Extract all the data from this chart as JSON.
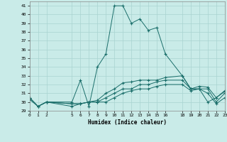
{
  "xlabel": "Humidex (Indice chaleur)",
  "bg_color": "#c9ebe8",
  "grid_color": "#a8d4d0",
  "line_color": "#1a6e6a",
  "xlim": [
    0,
    23
  ],
  "ylim": [
    29,
    41.5
  ],
  "yticks": [
    29,
    30,
    31,
    32,
    33,
    34,
    35,
    36,
    37,
    38,
    39,
    40,
    41
  ],
  "xticks": [
    0,
    1,
    2,
    5,
    6,
    7,
    8,
    9,
    10,
    11,
    12,
    13,
    14,
    15,
    16,
    18,
    19,
    20,
    21,
    22,
    23
  ],
  "series": [
    {
      "x": [
        0,
        1,
        2,
        5,
        6,
        7,
        8,
        9,
        10,
        11,
        12,
        13,
        14,
        15,
        16,
        18,
        19,
        20,
        21,
        22,
        23
      ],
      "y": [
        30.5,
        29.5,
        30.0,
        30.0,
        32.5,
        29.5,
        34.0,
        35.5,
        41.0,
        41.0,
        39.0,
        39.5,
        38.2,
        38.5,
        35.5,
        33.0,
        31.5,
        31.5,
        30.0,
        30.5,
        31.2
      ]
    },
    {
      "x": [
        0,
        1,
        2,
        5,
        6,
        7,
        8,
        9,
        10,
        11,
        12,
        13,
        14,
        15,
        16,
        18,
        19,
        20,
        21,
        22,
        23
      ],
      "y": [
        30.5,
        29.5,
        30.0,
        29.8,
        29.8,
        30.0,
        30.2,
        31.0,
        31.5,
        32.2,
        32.3,
        32.5,
        32.5,
        32.5,
        32.8,
        33.0,
        31.5,
        31.8,
        31.7,
        30.5,
        31.3
      ]
    },
    {
      "x": [
        0,
        1,
        2,
        5,
        6,
        7,
        8,
        9,
        10,
        11,
        12,
        13,
        14,
        15,
        16,
        18,
        19,
        20,
        21,
        22,
        23
      ],
      "y": [
        30.5,
        29.5,
        30.0,
        29.8,
        29.8,
        30.0,
        30.0,
        30.5,
        31.0,
        31.5,
        31.5,
        32.0,
        32.0,
        32.3,
        32.5,
        32.5,
        31.5,
        31.5,
        31.5,
        30.0,
        31.0
      ]
    },
    {
      "x": [
        0,
        1,
        2,
        5,
        6,
        7,
        8,
        9,
        10,
        11,
        12,
        13,
        14,
        15,
        16,
        18,
        19,
        20,
        21,
        22,
        23
      ],
      "y": [
        30.3,
        29.5,
        30.0,
        29.5,
        29.8,
        30.0,
        30.0,
        30.0,
        30.5,
        31.0,
        31.3,
        31.5,
        31.5,
        31.8,
        32.0,
        32.0,
        31.3,
        31.5,
        31.0,
        29.8,
        30.5
      ]
    }
  ]
}
